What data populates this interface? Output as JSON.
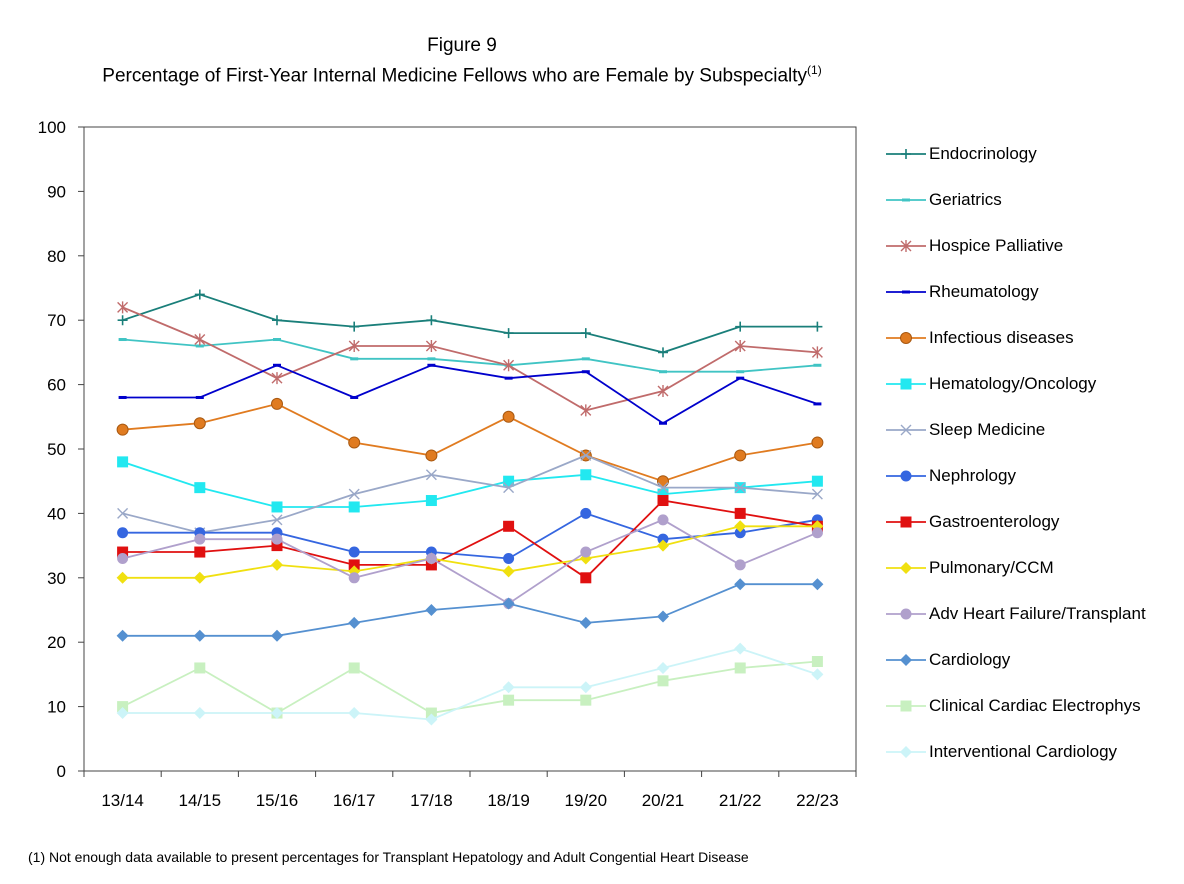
{
  "title_line1": "Figure 9",
  "title_line2": "Percentage of First-Year Internal Medicine Fellows who are Female by Subspecialty",
  "title_superscript": "(1)",
  "footnote": "(1) Not enough data available to present  percentages for Transplant Hepatology and Adult Congential Heart Disease",
  "chart_data": {
    "type": "line",
    "categories": [
      "13/14",
      "14/15",
      "15/16",
      "16/17",
      "17/18",
      "18/19",
      "19/20",
      "20/21",
      "21/22",
      "22/23"
    ],
    "ylim": [
      0,
      100
    ],
    "yticks": [
      "0",
      "10",
      "20",
      "30",
      "40",
      "50",
      "60",
      "70",
      "80",
      "90",
      "100"
    ],
    "grid": false,
    "legend_position": "right",
    "series": [
      {
        "name": "Endocrinology",
        "color": "#1a7f7a",
        "marker": "plus",
        "values": [
          70,
          74,
          70,
          69,
          70,
          68,
          68,
          65,
          69,
          69
        ]
      },
      {
        "name": "Geriatrics",
        "color": "#40c4c4",
        "marker": "dash",
        "values": [
          67,
          66,
          67,
          64,
          64,
          63,
          64,
          62,
          62,
          63
        ]
      },
      {
        "name": "Hospice Palliative",
        "color": "#c06b6b",
        "marker": "star",
        "values": [
          72,
          67,
          61,
          66,
          66,
          63,
          56,
          59,
          66,
          65
        ]
      },
      {
        "name": "Rheumatology",
        "color": "#0000cc",
        "marker": "dash",
        "values": [
          58,
          58,
          63,
          58,
          63,
          61,
          62,
          54,
          61,
          57
        ]
      },
      {
        "name": "Infectious diseases",
        "color": "#e07b20",
        "marker": "circle-orange",
        "values": [
          53,
          54,
          57,
          51,
          49,
          55,
          49,
          45,
          49,
          51
        ]
      },
      {
        "name": "Hematology/Oncology",
        "color": "#22e8f0",
        "marker": "square",
        "values": [
          48,
          44,
          41,
          41,
          42,
          45,
          46,
          43,
          44,
          45
        ]
      },
      {
        "name": "Sleep Medicine",
        "color": "#9aa8c8",
        "marker": "x",
        "values": [
          40,
          37,
          39,
          43,
          46,
          44,
          49,
          44,
          44,
          43
        ]
      },
      {
        "name": "Nephrology",
        "color": "#3566e0",
        "marker": "circle",
        "values": [
          37,
          37,
          37,
          34,
          34,
          33,
          40,
          36,
          37,
          39
        ]
      },
      {
        "name": "Gastroenterology",
        "color": "#e01010",
        "marker": "square",
        "values": [
          34,
          34,
          35,
          32,
          32,
          38,
          30,
          42,
          40,
          38
        ]
      },
      {
        "name": "Pulmonary/CCM",
        "color": "#f0e010",
        "marker": "diamond",
        "values": [
          30,
          30,
          32,
          31,
          33,
          31,
          33,
          35,
          38,
          38
        ]
      },
      {
        "name": "Adv Heart Failure/Transplant",
        "color": "#b0a0cc",
        "marker": "circle",
        "values": [
          33,
          36,
          36,
          30,
          33,
          26,
          34,
          39,
          32,
          37
        ]
      },
      {
        "name": "Cardiology",
        "color": "#5590d0",
        "marker": "diamond",
        "values": [
          21,
          21,
          21,
          23,
          25,
          26,
          23,
          24,
          29,
          29
        ]
      },
      {
        "name": "Clinical Cardiac Electrophys",
        "color": "#c8f0c0",
        "marker": "square",
        "values": [
          10,
          16,
          9,
          16,
          9,
          11,
          11,
          14,
          16,
          17
        ]
      },
      {
        "name": "Interventional Cardiology",
        "color": "#ccf4f8",
        "marker": "diamond",
        "values": [
          9,
          9,
          9,
          9,
          8,
          13,
          13,
          16,
          19,
          15
        ]
      }
    ]
  }
}
